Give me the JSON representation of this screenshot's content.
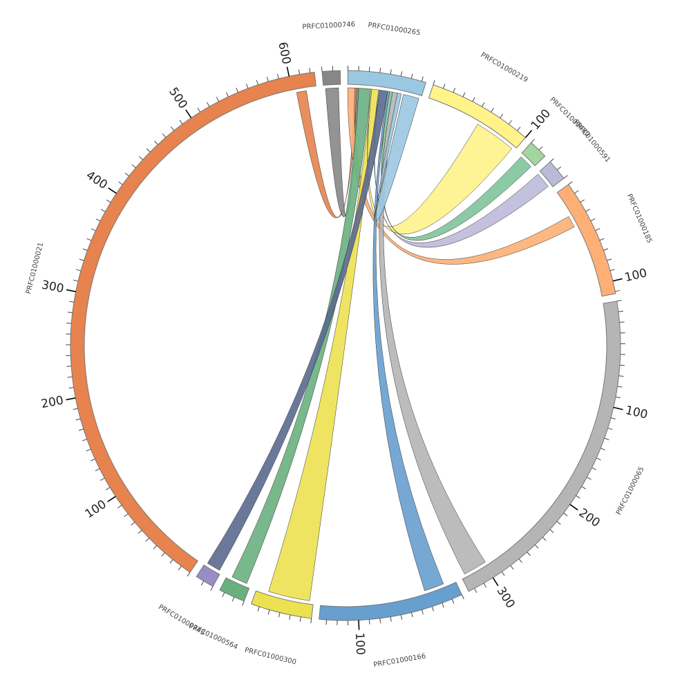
{
  "chart_data": {
    "type": "chord",
    "tick_minor_interval": 10,
    "tick_major_interval": 100,
    "segments": [
      {
        "name": "PRFC01000265",
        "length": 74,
        "color": "#9ac8e2"
      },
      {
        "name": "PRFC01000219",
        "length": 100,
        "color": "#fff38a"
      },
      {
        "name": "PRFC01000480",
        "length": 18,
        "color": "#a2d6a0"
      },
      {
        "name": "PRFC01000591",
        "length": 20,
        "color": "#bcbad9"
      },
      {
        "name": "PRFC01000185",
        "length": 112,
        "color": "#fdaf75"
      },
      {
        "name": "PRFC01000065",
        "length": 326,
        "color": "#b5b5b5"
      },
      {
        "name": "PRFC01000166",
        "length": 137,
        "color": "#679fce"
      },
      {
        "name": "PRFC01000300",
        "length": 58,
        "color": "#ece150"
      },
      {
        "name": "PRFC01000564",
        "length": 25,
        "color": "#6ab07f"
      },
      {
        "name": "PRFC01000743",
        "length": 18,
        "color": "#9a8cc6"
      },
      {
        "name": "PRFC01000021",
        "length": 624,
        "color": "#e6834f"
      },
      {
        "name": "PRFC01000746",
        "length": 17,
        "color": "#878787"
      }
    ],
    "chords": [
      {
        "source": "PRFC01000021",
        "source_range": [
          604,
          614
        ],
        "target": "PRFC01000265",
        "target_range": [
          7,
          9
        ],
        "color": "#e6834f"
      },
      {
        "source": "PRFC01000746",
        "source_range": [
          2,
          15
        ],
        "target": "PRFC01000265",
        "target_range": [
          9,
          11
        ],
        "color": "#878787"
      },
      {
        "source": "PRFC01000185",
        "source_range": [
          26,
          38
        ],
        "target": "PRFC01000265",
        "target_range": [
          0,
          7
        ],
        "color": "#fdaf75"
      },
      {
        "source": "PRFC01000564",
        "source_range": [
          4,
          20
        ],
        "target": "PRFC01000265",
        "target_range": [
          11,
          23
        ],
        "color": "#6ab07f"
      },
      {
        "source": "PRFC01000300",
        "source_range": [
          4,
          46
        ],
        "target": "PRFC01000265",
        "target_range": [
          24,
          31
        ],
        "color": "#ece150"
      },
      {
        "source": "PRFC01000219",
        "source_range": [
          55,
          97
        ],
        "target": "PRFC01000265",
        "target_range": [
          23,
          24
        ],
        "color": "#fff38a"
      },
      {
        "source": "PRFC01000591",
        "source_range": [
          1,
          17
        ],
        "target": "PRFC01000265",
        "target_range": [
          31,
          32
        ],
        "color": "#bcbad9"
      },
      {
        "source": "PRFC01000743",
        "source_range": [
          2,
          16
        ],
        "target": "PRFC01000265",
        "target_range": [
          32,
          40
        ],
        "color": "#5a6a8f"
      },
      {
        "source": "PRFC01000166",
        "source_range": [
          12,
          32
        ],
        "target": "PRFC01000265",
        "target_range": [
          40,
          42
        ],
        "color": "#679fce"
      },
      {
        "source": "PRFC01000480",
        "source_range": [
          2,
          16
        ],
        "target": "PRFC01000265",
        "target_range": [
          42,
          45
        ],
        "color": "#7fc49b"
      },
      {
        "source": "PRFC01000065",
        "source_range": [
          298,
          322
        ],
        "target": "PRFC01000265",
        "target_range": [
          45,
          50
        ],
        "color": "#b5b5b5"
      },
      {
        "source": "PRFC01000265",
        "source_range": [
          56,
          72
        ],
        "target": "PRFC01000265",
        "target_range": [
          50,
          54
        ],
        "color": "#9ac8e2"
      }
    ]
  }
}
